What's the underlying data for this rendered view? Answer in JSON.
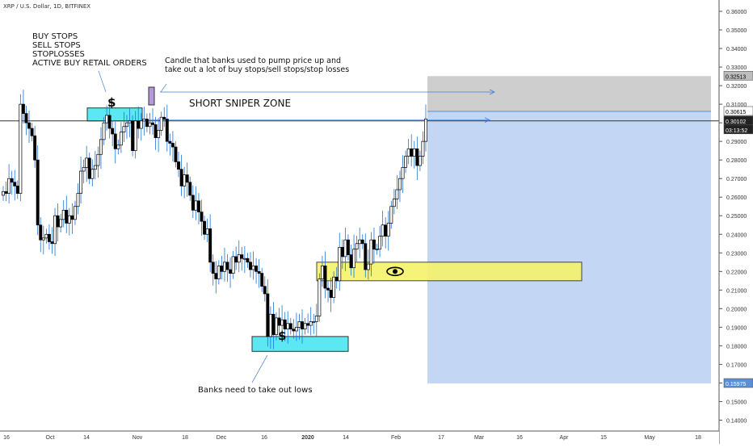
{
  "header": {
    "title": "XRP / U.S. Dollar, 1D, BITFINEX"
  },
  "annotations": {
    "left_note": [
      "BUY STOPS",
      "SELL STOPS",
      "STOPLOSSES",
      "ACTIVE BUY RETAIL ORDERS"
    ],
    "candle_note": [
      "Candle that banks used to pump price up and",
      "take out a lot of buy stops/sell stops/stop losses"
    ],
    "short_zone_label": "SHORT SNIPER ZONE",
    "banks_note": "Banks need to take out lows",
    "dollar_symbol": "$"
  },
  "price_labels": {
    "top_box": "0.32513",
    "entry": "0.30615",
    "last": "0.30102",
    "countdown": "03:13:52",
    "bottom_box": "0.15975"
  },
  "colors": {
    "up": "#ffffff",
    "down": "#000000",
    "wick": "#1e73d8",
    "stop_zone": "#bdbdbd",
    "target_zone": "#a9c6ef",
    "cyan_box": "#5ce8f2",
    "yellow_box": "#f5f26a",
    "purple_box": "#b29bd6",
    "arrow": "#3d7fd9",
    "price_line": "#333333"
  },
  "chart_data": {
    "type": "candlestick",
    "symbol": "XRP / U.S. Dollar",
    "interval": "1D",
    "exchange": "BITFINEX",
    "y_range": [
      0.135,
      0.36
    ],
    "y_ticks": [
      "0.36000",
      "0.35000",
      "0.34000",
      "0.33000",
      "0.32000",
      "0.31000",
      "0.30000",
      "0.29000",
      "0.28000",
      "0.27000",
      "0.26000",
      "0.25000",
      "0.24000",
      "0.23000",
      "0.22000",
      "0.21000",
      "0.20000",
      "0.19000",
      "0.18000",
      "0.17000",
      "0.16000",
      "0.15000",
      "0.14000"
    ],
    "x_ticks": [
      "16",
      "Oct",
      "14",
      "Nov",
      "18",
      "Dec",
      "16",
      "2020",
      "14",
      "Feb",
      "17",
      "Mar",
      "16",
      "Apr",
      "15",
      "May",
      "18"
    ],
    "candles_close": [
      0.263,
      0.262,
      0.27,
      0.268,
      0.266,
      0.262,
      0.31,
      0.305,
      0.3,
      0.297,
      0.293,
      0.28,
      0.245,
      0.237,
      0.238,
      0.24,
      0.236,
      0.235,
      0.25,
      0.244,
      0.248,
      0.253,
      0.246,
      0.25,
      0.248,
      0.255,
      0.262,
      0.274,
      0.276,
      0.281,
      0.27,
      0.275,
      0.277,
      0.283,
      0.291,
      0.3,
      0.304,
      0.297,
      0.294,
      0.286,
      0.288,
      0.295,
      0.298,
      0.3,
      0.301,
      0.285,
      0.301,
      0.297,
      0.301,
      0.302,
      0.298,
      0.3,
      0.299,
      0.292,
      0.296,
      0.303,
      0.302,
      0.29,
      0.289,
      0.287,
      0.279,
      0.275,
      0.266,
      0.272,
      0.268,
      0.261,
      0.253,
      0.258,
      0.252,
      0.247,
      0.24,
      0.243,
      0.225,
      0.219,
      0.216,
      0.223,
      0.22,
      0.225,
      0.221,
      0.219,
      0.228,
      0.225,
      0.229,
      0.227,
      0.227,
      0.225,
      0.221,
      0.223,
      0.22,
      0.219,
      0.212,
      0.208,
      0.185,
      0.197,
      0.186,
      0.195,
      0.191,
      0.194,
      0.189,
      0.192,
      0.189,
      0.188,
      0.19,
      0.193,
      0.189,
      0.192,
      0.191,
      0.193,
      0.193,
      0.196,
      0.216,
      0.223,
      0.211,
      0.21,
      0.206,
      0.217,
      0.215,
      0.233,
      0.228,
      0.237,
      0.229,
      0.222,
      0.232,
      0.235,
      0.237,
      0.235,
      0.221,
      0.224,
      0.237,
      0.232,
      0.232,
      0.239,
      0.245,
      0.239,
      0.246,
      0.255,
      0.259,
      0.264,
      0.27,
      0.276,
      0.282,
      0.286,
      0.282,
      0.286,
      0.277,
      0.282,
      0.29,
      0.302
    ],
    "ma_label_values": {
      "top_box": 0.32513,
      "entry": 0.30615,
      "last": 0.30102,
      "bottom_box": 0.15975
    },
    "zones": [
      {
        "name": "stop zone",
        "from": 0.30615,
        "to": 0.32513
      },
      {
        "name": "target zone",
        "from": 0.15975,
        "to": 0.30615
      },
      {
        "name": "eye zone",
        "from": 0.215,
        "to": 0.225
      },
      {
        "name": "upper liquidity box",
        "from": 0.301,
        "to": 0.308
      },
      {
        "name": "lower liquidity box",
        "from": 0.177,
        "to": 0.185
      }
    ],
    "grid": false,
    "legend": "none"
  }
}
